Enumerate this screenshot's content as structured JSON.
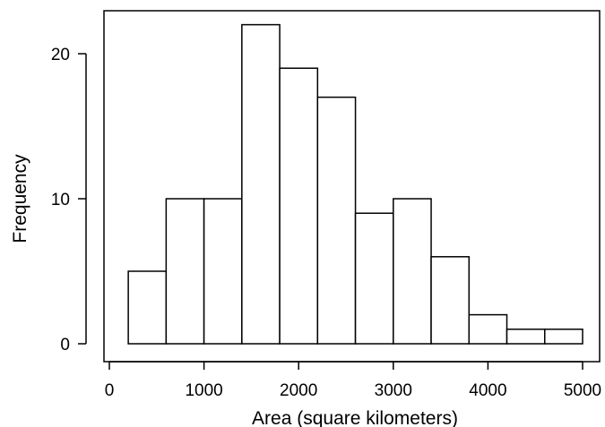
{
  "chart_data": {
    "type": "bar",
    "subtype": "histogram",
    "title": "",
    "xlabel": "Area (square kilometers)",
    "ylabel": "Frequency",
    "bin_edges": [
      200,
      600,
      1000,
      1400,
      1800,
      2200,
      2600,
      3000,
      3400,
      3800,
      4200,
      4600,
      5000
    ],
    "values": [
      5,
      10,
      10,
      22,
      19,
      17,
      9,
      10,
      6,
      2,
      1,
      1
    ],
    "xlim": [
      0,
      5000
    ],
    "ylim": [
      0,
      22
    ],
    "x_ticks": [
      0,
      1000,
      2000,
      3000,
      4000,
      5000
    ],
    "x_tick_labels": [
      "0",
      "1000",
      "2000",
      "3000",
      "4000",
      "5000"
    ],
    "y_ticks": [
      0,
      10,
      20
    ],
    "y_tick_labels": [
      "0",
      "10",
      "20"
    ],
    "grid": false,
    "legend": "none",
    "colors": {
      "bar_fill": "#ffffff",
      "bar_stroke": "#000000",
      "axis": "#000000"
    }
  }
}
